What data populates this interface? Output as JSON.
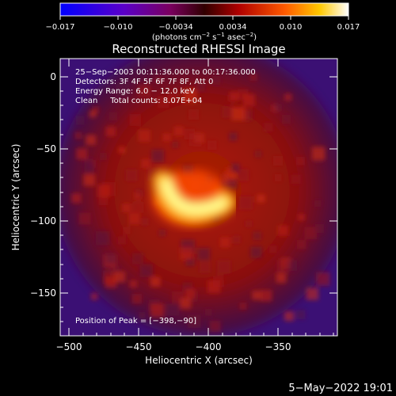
{
  "colorbar": {
    "ticks": [
      "−0.017",
      "−0.010",
      "−0.0034",
      "0.0034",
      "0.010",
      "0.017"
    ],
    "units_prefix": "(photons cm",
    "units_exp1": "−2",
    "units_mid": " s",
    "units_exp2": "−1",
    "units_mid2": " asec",
    "units_exp3": "−2",
    "units_suffix": ")"
  },
  "plot": {
    "title": "Reconstructed RHESSI Image",
    "xlabel": "Heliocentric X (arcsec)",
    "ylabel": "Heliocentric Y (arcsec)",
    "xticks": [
      "−500",
      "−450",
      "−400",
      "−350"
    ],
    "yticks": [
      "0",
      "−50",
      "−100",
      "−150"
    ],
    "info": [
      "25−Sep−2003 00:11:36.000 to 00:17:36.000",
      "Detectors: 3F 4F 5F 6F 7F 8F, Att 0",
      "Energy Range: 6.0 − 12.0 keV",
      "Clean     Total counts: 8.07E+04"
    ],
    "peak": "Position of Peak = [−398,−90]"
  },
  "footer": {
    "date": "5−May−2022 19:01"
  },
  "colors": {
    "low": "#2a00ff",
    "mid": "#c01010",
    "high": "#ffffff"
  }
}
